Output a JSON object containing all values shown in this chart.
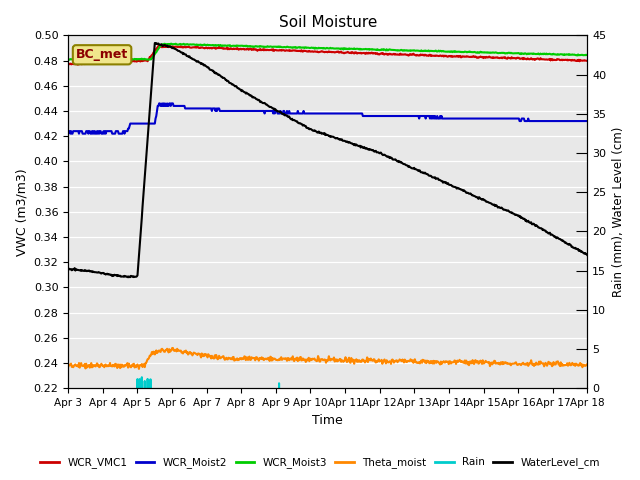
{
  "title": "Soil Moisture",
  "xlabel": "Time",
  "ylabel_left": "VWC (m3/m3)",
  "ylabel_right": "Rain (mm), Water Level (cm)",
  "xlim": [
    0,
    15
  ],
  "ylim_left": [
    0.22,
    0.5
  ],
  "ylim_right": [
    0,
    45
  ],
  "xtick_labels": [
    "Apr 3",
    "Apr 4",
    "Apr 5",
    "Apr 6",
    "Apr 7",
    "Apr 8",
    "Apr 9",
    "Apr 10",
    "Apr 11",
    "Apr 12",
    "Apr 13",
    "Apr 14",
    "Apr 15",
    "Apr 16",
    "Apr 17",
    "Apr 18"
  ],
  "ytick_left": [
    0.22,
    0.24,
    0.26,
    0.28,
    0.3,
    0.32,
    0.34,
    0.36,
    0.38,
    0.4,
    0.42,
    0.44,
    0.46,
    0.48,
    0.5
  ],
  "ytick_right": [
    0,
    5,
    10,
    15,
    20,
    25,
    30,
    35,
    40,
    45
  ],
  "bg_color": "#e8e8e8",
  "annotation_text": "BC_met",
  "legend_items": [
    {
      "label": "WCR_VMC1",
      "color": "#cc0000",
      "lw": 1.5
    },
    {
      "label": "WCR_Moist2",
      "color": "#0000cc",
      "lw": 1.5
    },
    {
      "label": "WCR_Moist3",
      "color": "#00cc00",
      "lw": 1.5
    },
    {
      "label": "Theta_moist",
      "color": "#ff8800",
      "lw": 1.5
    },
    {
      "label": "Rain",
      "color": "#00cccc",
      "lw": 1.5
    },
    {
      "label": "WaterLevel_cm",
      "color": "#000000",
      "lw": 1.5
    }
  ]
}
